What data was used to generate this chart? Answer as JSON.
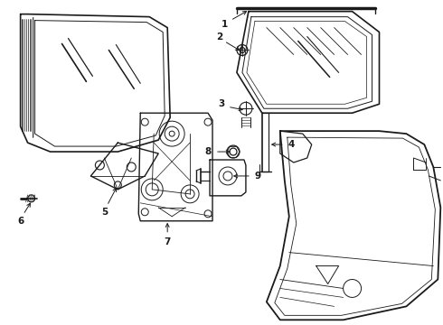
{
  "background_color": "#ffffff",
  "line_color": "#1a1a1a",
  "figsize": [
    4.9,
    3.6
  ],
  "dpi": 100,
  "xlim": [
    0,
    490
  ],
  "ylim": [
    0,
    360
  ]
}
